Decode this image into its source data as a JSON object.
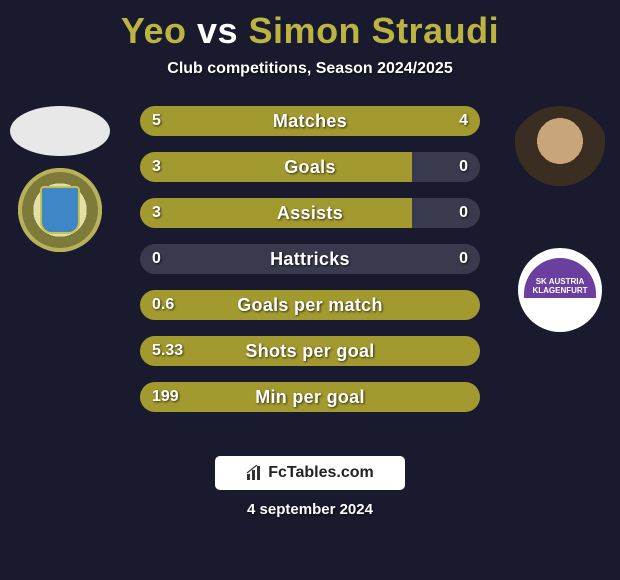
{
  "title": {
    "player1": "Yeo",
    "vs": "vs",
    "player2": "Simon Straudi",
    "player_color": "#bcb441",
    "vs_color": "#ffffff",
    "fontsize": 36
  },
  "subtitle": {
    "text": "Club competitions, Season 2024/2025",
    "fontsize": 16,
    "color": "#ffffff"
  },
  "background_color": "#1a1a2e",
  "bar_style": {
    "height": 30,
    "radius": 15,
    "track_color": "#3a3a4e",
    "fill_color": "#a39a2f",
    "label_color": "#ffffff",
    "label_fontsize": 18,
    "value_fontsize": 16,
    "gap": 16
  },
  "stats": [
    {
      "label": "Matches",
      "left_text": "5",
      "right_text": "4",
      "left_pct": 80,
      "right_pct": 20
    },
    {
      "label": "Goals",
      "left_text": "3",
      "right_text": "0",
      "left_pct": 80,
      "right_pct": 0
    },
    {
      "label": "Assists",
      "left_text": "3",
      "right_text": "0",
      "left_pct": 80,
      "right_pct": 0
    },
    {
      "label": "Hattricks",
      "left_text": "0",
      "right_text": "0",
      "left_pct": 0,
      "right_pct": 0
    },
    {
      "label": "Goals per match",
      "left_text": "0.6",
      "right_text": "",
      "left_pct": 100,
      "right_pct": 0
    },
    {
      "label": "Shots per goal",
      "left_text": "5.33",
      "right_text": "",
      "left_pct": 100,
      "right_pct": 0
    },
    {
      "label": "Min per goal",
      "left_text": "199",
      "right_text": "",
      "left_pct": 100,
      "right_pct": 0
    }
  ],
  "avatars": {
    "left_player": {
      "shape": "ellipse",
      "bg": "#e8e8e8"
    },
    "right_player": {
      "shape": "circle",
      "bg": "#d8d8d8"
    }
  },
  "crests": {
    "left": {
      "name": "left-club-crest",
      "primary": "#cfca7a",
      "accent": "#3e86c6"
    },
    "right": {
      "name": "right-club-crest",
      "primary": "#6b3fa0",
      "text": "SK AUSTRIA KLAGENFURT"
    }
  },
  "footer": {
    "site": "FcTables.com",
    "badge_bg": "#ffffff",
    "text_color": "#222222",
    "icon": "bar-chart-icon"
  },
  "date": {
    "text": "4 september 2024",
    "fontsize": 15,
    "color": "#ffffff"
  }
}
